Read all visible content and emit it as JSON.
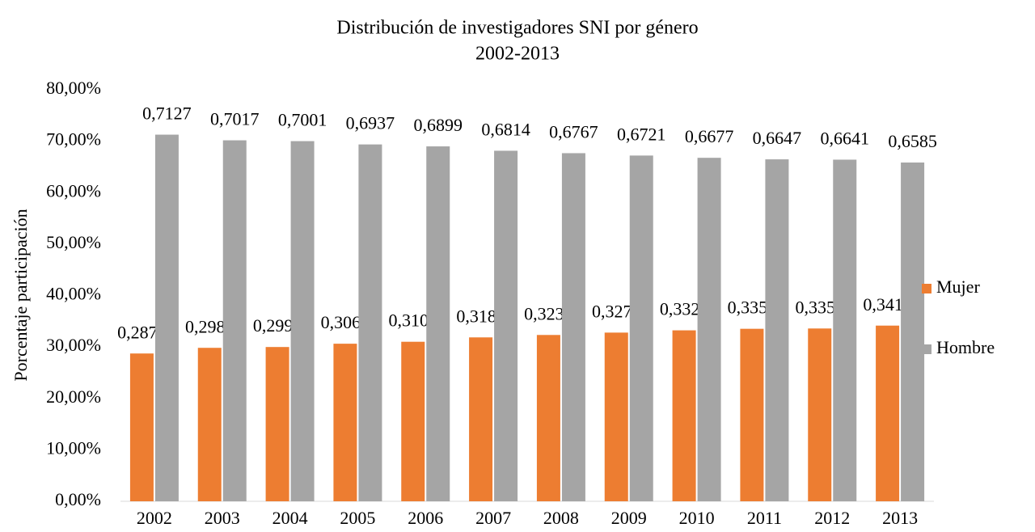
{
  "chart_data": {
    "type": "bar",
    "title": "Distribución de investigadores SNI por género",
    "subtitle": "2002-2013",
    "y_label": "Porcentaje participación",
    "categories": [
      "2002",
      "2003",
      "2004",
      "2005",
      "2006",
      "2007",
      "2008",
      "2009",
      "2010",
      "2011",
      "2012",
      "2013"
    ],
    "series": [
      {
        "name": "Mujer",
        "color": "#ed7d31",
        "values": [
          28.73,
          29.83,
          29.99,
          30.63,
          31.01,
          31.86,
          32.33,
          32.79,
          33.23,
          33.53,
          33.59,
          34.15
        ],
        "value_labels": [
          "0,2873",
          "0,2983",
          "0,2999",
          "0,3063",
          "0,3101",
          "0,3186",
          "0,3233",
          "0,3279",
          "0,3323",
          "0,3353",
          "0,3359",
          "0,3415"
        ]
      },
      {
        "name": "Hombre",
        "color": "#a5a5a5",
        "values": [
          71.27,
          70.17,
          70.01,
          69.37,
          68.99,
          68.14,
          67.67,
          67.21,
          66.77,
          66.47,
          66.41,
          65.85
        ],
        "value_labels": [
          "0,7127",
          "0,7017",
          "0,7001",
          "0,6937",
          "0,6899",
          "0,6814",
          "0,6767",
          "0,6721",
          "0,6677",
          "0,6647",
          "0,6641",
          "0,6585"
        ]
      }
    ],
    "ylim": [
      0,
      80
    ],
    "yticks": [
      {
        "value": 0,
        "label": "0,00%"
      },
      {
        "value": 10,
        "label": "10,00%"
      },
      {
        "value": 20,
        "label": "20,00%"
      },
      {
        "value": 30,
        "label": "30,00%"
      },
      {
        "value": 40,
        "label": "40,00%"
      },
      {
        "value": 50,
        "label": "50,00%"
      },
      {
        "value": 60,
        "label": "60,00%"
      },
      {
        "value": 70,
        "label": "70,00%"
      },
      {
        "value": 80,
        "label": "80,00%"
      }
    ],
    "grid": false,
    "legend": "right"
  }
}
